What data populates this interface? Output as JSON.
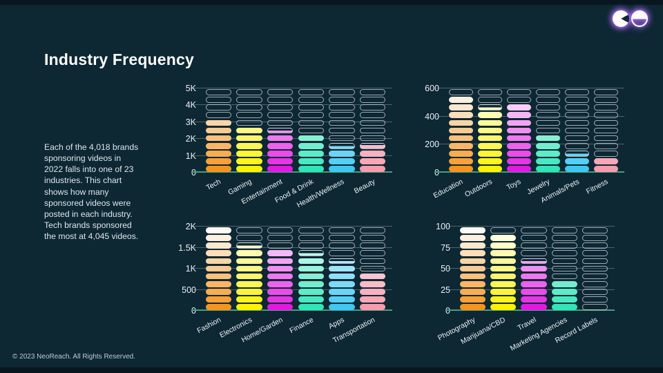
{
  "slide": {
    "title": "Industry Frequency",
    "description": "Each of the 4,018 brands sponsoring videos in 2022 falls into one of 23 industries. This chart shows how many sponsored videos were posted in each industry. Tech brands sponsored the most at 4,045 videos.",
    "footer": "© 2023 NeoReach. All Rights Reserved.",
    "logo": "neoreach-logo-mark",
    "colors": {
      "background": "#0D2733",
      "edge_band": "#081620",
      "text": "#FFFFFF",
      "muted_text": "#DDE7EB",
      "baseline": "#46A07E",
      "gridline": "rgba(150,180,180,0.45)",
      "pill_outline": "rgba(216,226,231,0.72)",
      "logo_glow": "#A855F7",
      "palette": {
        "orange": "#F7941E",
        "yellow": "#FFF100",
        "magenta": "#E318E3",
        "teal": "#30E5B7",
        "cyan": "#3FC8F3",
        "pink": "#F89BAD"
      }
    }
  },
  "chart_data": [
    {
      "type": "bar",
      "variant": "pill-stack",
      "name": "industries-0-5k",
      "ylim": [
        0,
        5000
      ],
      "slots": 11,
      "yticks": [
        {
          "label": "0",
          "value": 0
        },
        {
          "label": "1K",
          "value": 1000
        },
        {
          "label": "2K",
          "value": 2000
        },
        {
          "label": "3K",
          "value": 3000
        },
        {
          "label": "4K",
          "value": 4000
        },
        {
          "label": "5K",
          "value": 5000
        }
      ],
      "columns": [
        {
          "label": "Tech",
          "value": 4045,
          "color": "orange",
          "filled": 7
        },
        {
          "label": "Gaming",
          "value": 2700,
          "color": "yellow",
          "filled": 6
        },
        {
          "label": "Entertainment",
          "value": 2450,
          "color": "magenta",
          "filled": 5.5
        },
        {
          "label": "Food & Drink",
          "value": 2200,
          "color": "teal",
          "filled": 5
        },
        {
          "label": "Health/Wellness",
          "value": 1650,
          "color": "cyan",
          "filled": 3.5
        },
        {
          "label": "Beauty",
          "value": 1600,
          "color": "pink",
          "filled": 3.7
        }
      ]
    },
    {
      "type": "bar",
      "variant": "pill-stack",
      "name": "industries-0-600",
      "ylim": [
        0,
        600
      ],
      "slots": 11,
      "yticks": [
        {
          "label": "0",
          "value": 0
        },
        {
          "label": "200",
          "value": 200
        },
        {
          "label": "400",
          "value": 400
        },
        {
          "label": "600",
          "value": 600
        }
      ],
      "columns": [
        {
          "label": "Education",
          "value": 530,
          "color": "orange",
          "filled": 10
        },
        {
          "label": "Outdoors",
          "value": 455,
          "color": "yellow",
          "filled": 8.5
        },
        {
          "label": "Toys",
          "value": 465,
          "color": "magenta",
          "filled": 9
        },
        {
          "label": "Jewelry",
          "value": 250,
          "color": "teal",
          "filled": 5
        },
        {
          "label": "Animals/Pets",
          "value": 140,
          "color": "cyan",
          "filled": 2.5
        },
        {
          "label": "Fitness",
          "value": 110,
          "color": "pink",
          "filled": 2
        }
      ]
    },
    {
      "type": "bar",
      "variant": "pill-stack",
      "name": "industries-0-2k",
      "ylim": [
        0,
        2000
      ],
      "slots": 11,
      "yticks": [
        {
          "label": "0",
          "value": 0
        },
        {
          "label": "500",
          "value": 500
        },
        {
          "label": "1K",
          "value": 1000
        },
        {
          "label": "1.5K",
          "value": 1500
        },
        {
          "label": "2K",
          "value": 2000
        }
      ],
      "columns": [
        {
          "label": "Fashion",
          "value": 1950,
          "color": "orange",
          "filled": 11
        },
        {
          "label": "Electronics",
          "value": 1550,
          "color": "yellow",
          "filled": 8.5
        },
        {
          "label": "Home/Garden",
          "value": 1450,
          "color": "magenta",
          "filled": 8
        },
        {
          "label": "Finance",
          "value": 1370,
          "color": "teal",
          "filled": 7.5
        },
        {
          "label": "Apps",
          "value": 1180,
          "color": "cyan",
          "filled": 6.5
        },
        {
          "label": "Transportation",
          "value": 900,
          "color": "pink",
          "filled": 5
        }
      ]
    },
    {
      "type": "bar",
      "variant": "pill-stack",
      "name": "industries-0-100",
      "ylim": [
        0,
        100
      ],
      "slots": 11,
      "yticks": [
        {
          "label": "0",
          "value": 0
        },
        {
          "label": "25",
          "value": 25
        },
        {
          "label": "50",
          "value": 50
        },
        {
          "label": "75",
          "value": 75
        },
        {
          "label": "100",
          "value": 100
        }
      ],
      "columns": [
        {
          "label": "Photography",
          "value": 96,
          "color": "orange",
          "filled": 11
        },
        {
          "label": "Marijuana/CBD",
          "value": 90,
          "color": "yellow",
          "filled": 10
        },
        {
          "label": "Travel",
          "value": 58,
          "color": "magenta",
          "filled": 6.5
        },
        {
          "label": "Marketing Agencies",
          "value": 35,
          "color": "teal",
          "filled": 4
        },
        {
          "label": "Record Labels",
          "value": 5,
          "color": "cyan",
          "filled": 0
        }
      ]
    }
  ]
}
